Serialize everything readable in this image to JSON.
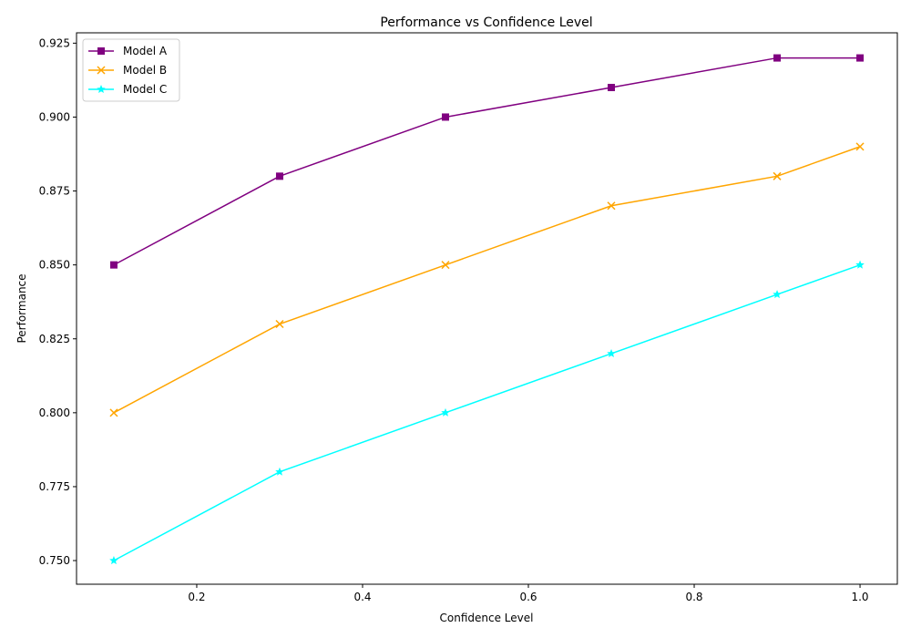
{
  "chart_data": {
    "type": "line",
    "title": "Performance vs Confidence Level",
    "xlabel": "Confidence Level",
    "ylabel": "Performance",
    "xlim": [
      0.055,
      1.045
    ],
    "ylim": [
      0.742,
      0.9285
    ],
    "xticks": [
      0.2,
      0.4,
      0.6,
      0.8,
      1.0
    ],
    "xtick_labels": [
      "0.2",
      "0.4",
      "0.6",
      "0.8",
      "1.0"
    ],
    "yticks": [
      0.75,
      0.775,
      0.8,
      0.825,
      0.85,
      0.875,
      0.9,
      0.925
    ],
    "ytick_labels": [
      "0.750",
      "0.775",
      "0.800",
      "0.825",
      "0.850",
      "0.875",
      "0.900",
      "0.925"
    ],
    "grid": false,
    "legend_position": "top-left",
    "x": [
      0.1,
      0.3,
      0.5,
      0.7,
      0.9,
      1.0
    ],
    "series": [
      {
        "name": "Model A",
        "color": "#800080",
        "marker": "square",
        "values": [
          0.85,
          0.88,
          0.9,
          0.91,
          0.92,
          0.92
        ]
      },
      {
        "name": "Model B",
        "color": "#ffa500",
        "marker": "x",
        "values": [
          0.8,
          0.83,
          0.85,
          0.87,
          0.88,
          0.89
        ]
      },
      {
        "name": "Model C",
        "color": "#00ffff",
        "marker": "star",
        "values": [
          0.75,
          0.78,
          0.8,
          0.82,
          0.84,
          0.85
        ]
      }
    ]
  }
}
